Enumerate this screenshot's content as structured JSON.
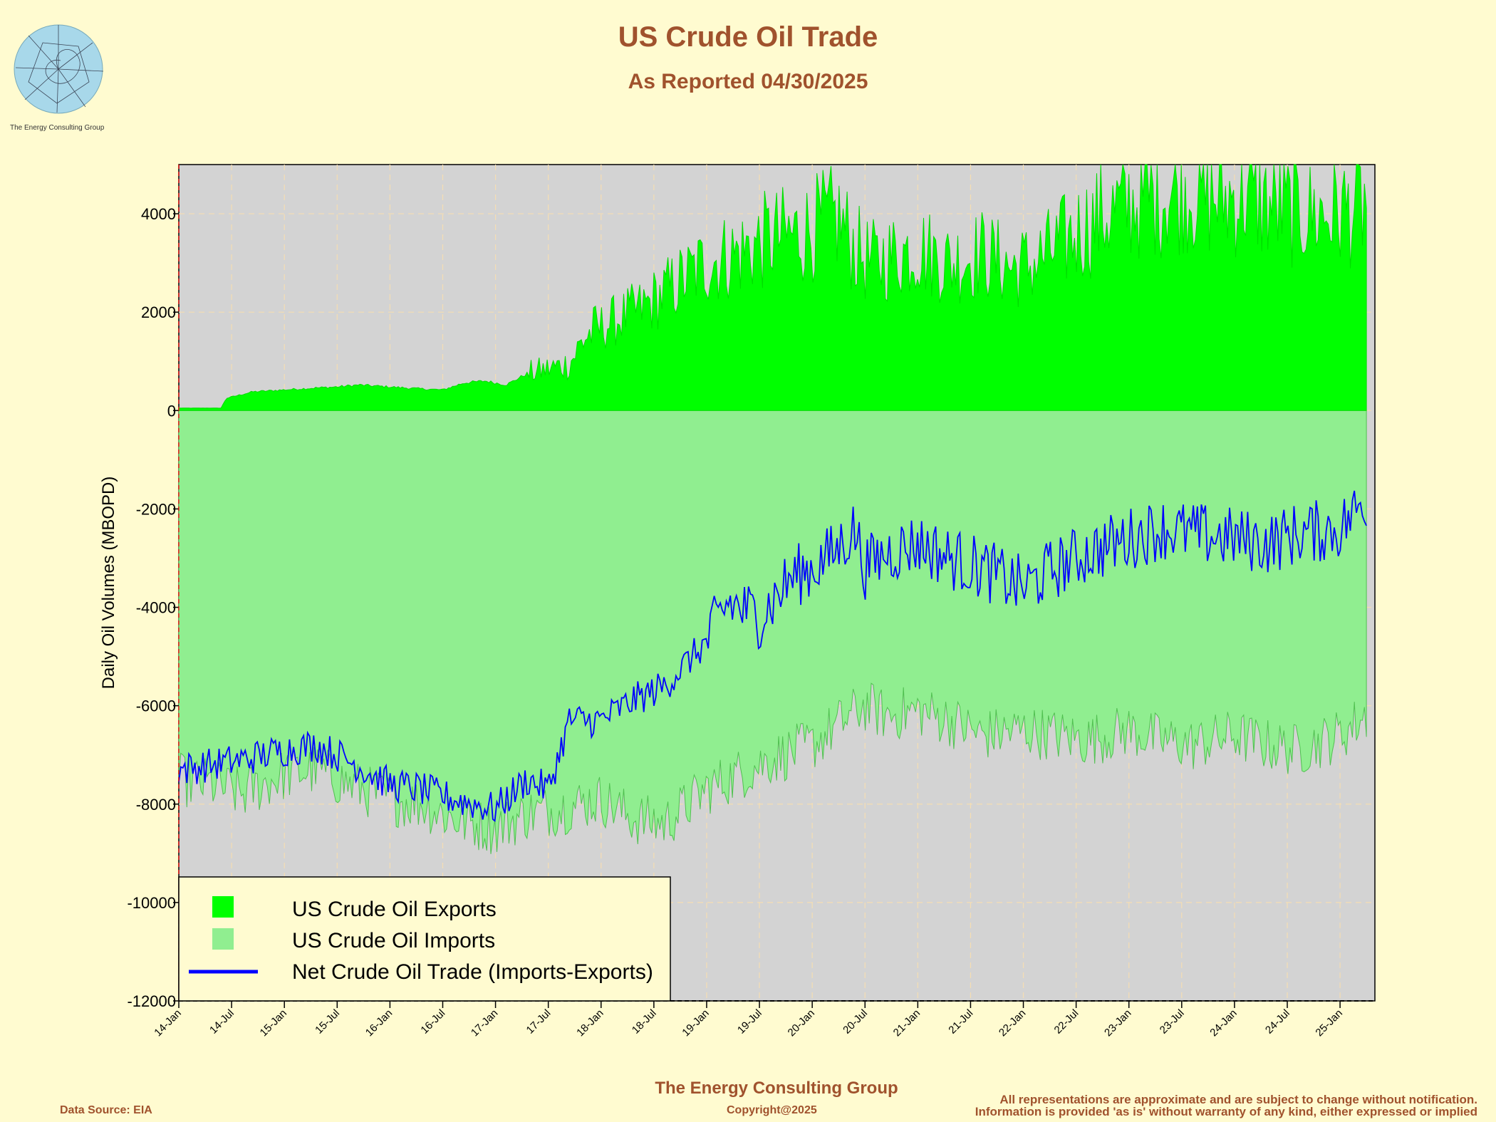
{
  "header": {
    "title": "US Crude Oil Trade",
    "subtitle": "As Reported 04/30/2025"
  },
  "logo": {
    "name": "The Energy Consulting Group"
  },
  "footer": {
    "company": "The Energy Consulting Group",
    "data_source": "Data Source: EIA",
    "copyright": "Copyright@2025",
    "disclaimer_1": "All representations are approximate and are subject to change without notification.",
    "disclaimer_2": "Information is provided 'as is' without warranty of any kind, either expressed or implied"
  },
  "colors": {
    "background": "#fffbd0",
    "plot_background": "#d3d3d3",
    "exports": "#00ff00",
    "imports": "#90ee90",
    "net": "#0000ff",
    "title": "#a0522d",
    "grid": "#f5deb3"
  },
  "chart_data": {
    "type": "area",
    "title": "US Crude Oil Trade",
    "subtitle": "As Reported 04/30/2025",
    "xlabel": "",
    "ylabel": "Daily Oil Volumes (MBOPD)",
    "ylim": [
      -12000,
      5000
    ],
    "yticks": [
      4000,
      2000,
      0,
      -2000,
      -4000,
      -6000,
      -8000,
      -10000,
      -12000
    ],
    "xticks": [
      "14-Jan",
      "14-Jul",
      "15-Jan",
      "15-Jul",
      "16-Jan",
      "16-Jul",
      "17-Jan",
      "17-Jul",
      "18-Jan",
      "18-Jul",
      "19-Jan",
      "19-Jul",
      "20-Jan",
      "20-Jul",
      "21-Jan",
      "21-Jul",
      "22-Jan",
      "22-Jul",
      "23-Jan",
      "23-Jul",
      "24-Jan",
      "24-Jul",
      "25-Jan"
    ],
    "x_domain": [
      "2014-01",
      "2025-04"
    ],
    "grid": true,
    "legend_position": "bottom-left",
    "series": [
      {
        "name": "US Crude Oil Exports",
        "kind": "area",
        "color": "#00ff00",
        "x": [
          2014.0,
          2014.4,
          2014.45,
          2014.7,
          2015.0,
          2015.3,
          2015.5,
          2015.7,
          2016.0,
          2016.3,
          2016.5,
          2016.7,
          2016.9,
          2017.1,
          2017.3,
          2017.5,
          2017.7,
          2017.85,
          2018.0,
          2018.2,
          2018.4,
          2018.6,
          2018.8,
          2019.0,
          2019.3,
          2019.6,
          2019.9,
          2020.1,
          2020.25,
          2020.4,
          2020.55,
          2020.7,
          2021.0,
          2021.3,
          2021.6,
          2021.9,
          2022.1,
          2022.3,
          2022.5,
          2022.7,
          2022.9,
          2023.1,
          2023.3,
          2023.5,
          2023.7,
          2023.9,
          2024.1,
          2024.3,
          2024.5,
          2024.7,
          2024.9,
          2025.1,
          2025.25
        ],
        "y": [
          50,
          50,
          250,
          380,
          420,
          460,
          480,
          520,
          480,
          440,
          420,
          560,
          600,
          520,
          750,
          850,
          950,
          1500,
          1700,
          1900,
          2100,
          2400,
          2700,
          3000,
          3200,
          3500,
          3600,
          3800,
          3900,
          3300,
          3000,
          3100,
          3300,
          3000,
          3200,
          2900,
          3000,
          3300,
          3600,
          3900,
          4100,
          4300,
          4400,
          4500,
          4400,
          4300,
          4400,
          4200,
          4100,
          4000,
          4000,
          4100,
          4200
        ]
      },
      {
        "name": "US Crude Oil Imports",
        "kind": "area",
        "color": "#90ee90",
        "x": [
          2014.0,
          2014.3,
          2014.6,
          2015.0,
          2015.3,
          2015.6,
          2016.0,
          2016.3,
          2016.6,
          2017.0,
          2017.3,
          2017.6,
          2018.0,
          2018.3,
          2018.6,
          2019.0,
          2019.3,
          2019.6,
          2020.0,
          2020.3,
          2020.5,
          2020.7,
          2021.0,
          2021.3,
          2021.6,
          2022.0,
          2022.3,
          2022.6,
          2023.0,
          2023.3,
          2023.6,
          2024.0,
          2024.3,
          2024.6,
          2025.0,
          2025.25
        ],
        "y": [
          -7500,
          -7600,
          -7800,
          -7400,
          -7300,
          -7600,
          -7900,
          -8000,
          -8300,
          -8500,
          -8200,
          -8100,
          -7900,
          -8300,
          -8400,
          -7700,
          -7400,
          -7100,
          -6800,
          -6300,
          -6000,
          -6200,
          -6100,
          -6300,
          -6600,
          -6500,
          -6600,
          -6700,
          -6500,
          -6700,
          -6800,
          -6600,
          -6800,
          -6900,
          -6600,
          -6200
        ]
      },
      {
        "name": "Net Crude Oil Trade (Imports-Exports)",
        "kind": "line",
        "color": "#0000ff",
        "x": [
          2014.0,
          2014.3,
          2014.6,
          2015.0,
          2015.3,
          2015.6,
          2016.0,
          2016.3,
          2016.6,
          2017.0,
          2017.3,
          2017.5,
          2017.7,
          2018.0,
          2018.3,
          2018.6,
          2019.0,
          2019.2,
          2019.5,
          2019.8,
          2020.0,
          2020.2,
          2020.4,
          2020.5,
          2020.7,
          2021.0,
          2021.3,
          2021.6,
          2022.0,
          2022.3,
          2022.6,
          2023.0,
          2023.3,
          2023.6,
          2024.0,
          2024.3,
          2024.6,
          2025.0,
          2025.25
        ],
        "y": [
          -7300,
          -7200,
          -7100,
          -6900,
          -6800,
          -7100,
          -7600,
          -7700,
          -7900,
          -8100,
          -7500,
          -7700,
          -6300,
          -6300,
          -5900,
          -5600,
          -4700,
          -3900,
          -4200,
          -3400,
          -3200,
          -2900,
          -2400,
          -3200,
          -2900,
          -2700,
          -3000,
          -3200,
          -3600,
          -3200,
          -2900,
          -2600,
          -2400,
          -2500,
          -2600,
          -2700,
          -2500,
          -2400,
          -1800
        ]
      }
    ]
  }
}
